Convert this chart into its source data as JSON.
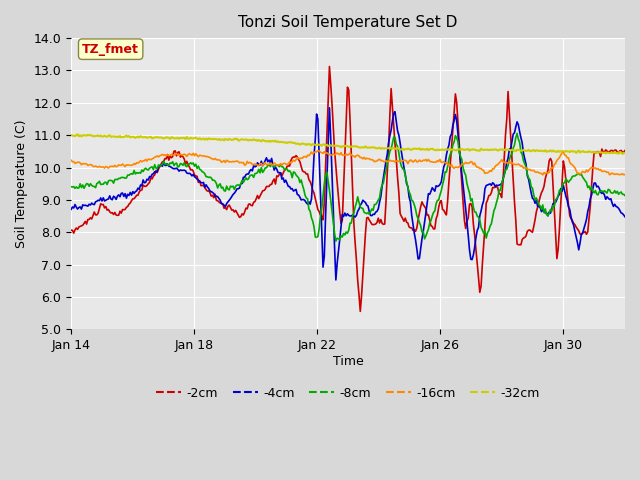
{
  "title": "Tonzi Soil Temperature Set D",
  "xlabel": "Time",
  "ylabel": "Soil Temperature (C)",
  "ylim": [
    5.0,
    14.0
  ],
  "yticks": [
    5.0,
    6.0,
    7.0,
    8.0,
    9.0,
    10.0,
    11.0,
    12.0,
    13.0,
    14.0
  ],
  "xtick_labels": [
    "Jan 14",
    "Jan 18",
    "Jan 22",
    "Jan 26",
    "Jan 30"
  ],
  "xtick_positions": [
    0,
    4,
    8,
    12,
    16
  ],
  "colors": {
    "-2cm": "#cc0000",
    "-4cm": "#0000cc",
    "-8cm": "#00aa00",
    "-16cm": "#ff8800",
    "-32cm": "#cccc00"
  },
  "annotation_text": "TZ_fmet",
  "annotation_color": "#cc0000",
  "annotation_bg": "#ffffcc",
  "bg_color": "#e8e8e8",
  "plot_bg": "#f0f0f0",
  "legend_dashes": "--"
}
